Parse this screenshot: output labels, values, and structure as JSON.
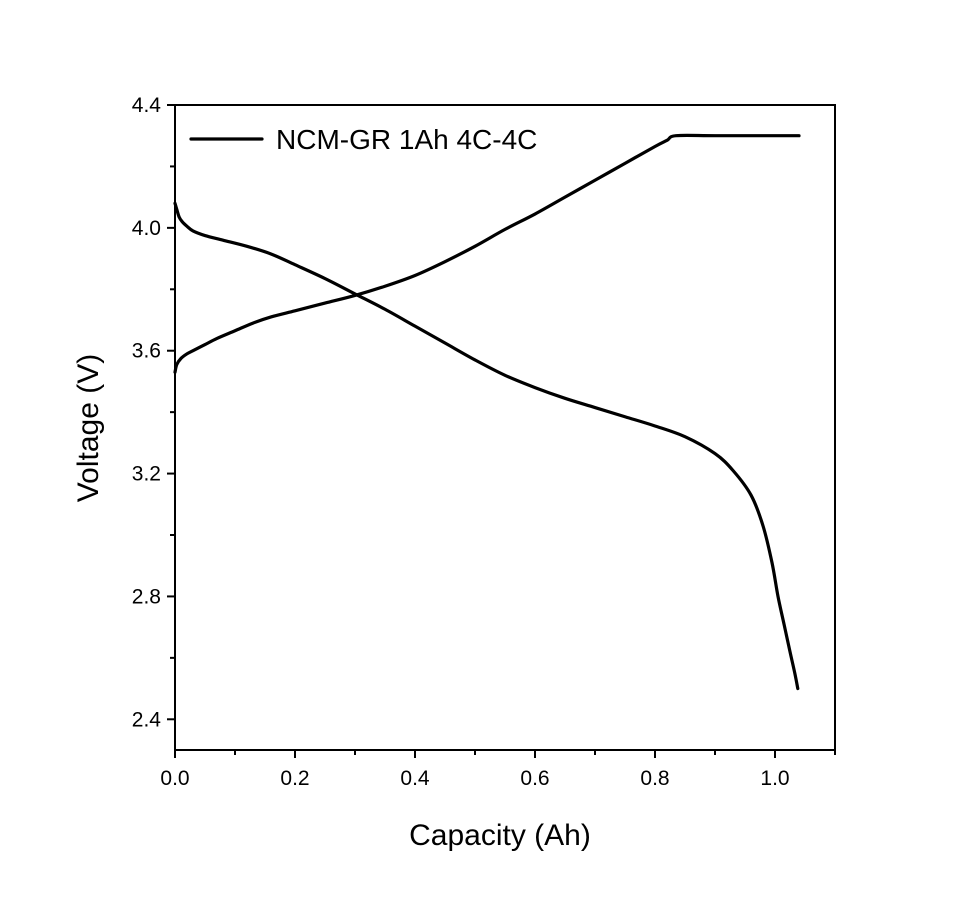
{
  "chart_data": {
    "type": "line",
    "title": "",
    "xlabel": "Capacity (Ah)",
    "ylabel": "Voltage (V)",
    "xlim": [
      0.0,
      1.1
    ],
    "ylim": [
      2.3,
      4.4
    ],
    "x_ticks": [
      "0.0",
      "0.2",
      "0.4",
      "0.6",
      "0.8",
      "1.0"
    ],
    "y_ticks": [
      "2.4",
      "2.8",
      "3.2",
      "3.6",
      "4.0",
      "4.4"
    ],
    "grid": false,
    "legend_position": "top-left",
    "legend_label": "NCM-GR 1Ah 4C-4C",
    "line_color": "#000000",
    "series": [
      {
        "name": "NCM-GR 1Ah 4C-4C",
        "curves": [
          {
            "x": [
              0.0,
              0.003,
              0.01,
              0.02,
              0.03,
              0.05,
              0.07,
              0.1,
              0.13,
              0.16,
              0.2,
              0.25,
              0.3,
              0.35,
              0.4,
              0.45,
              0.5,
              0.55,
              0.6,
              0.65,
              0.7,
              0.75,
              0.8,
              0.82,
              0.835,
              0.9,
              1.0,
              1.04
            ],
            "y": [
              3.53,
              3.555,
              3.575,
              3.59,
              3.6,
              3.62,
              3.64,
              3.665,
              3.69,
              3.71,
              3.73,
              3.755,
              3.78,
              3.81,
              3.845,
              3.89,
              3.94,
              3.995,
              4.045,
              4.1,
              4.155,
              4.21,
              4.265,
              4.285,
              4.3,
              4.3,
              4.3,
              4.3
            ]
          },
          {
            "x": [
              0.0,
              0.003,
              0.007,
              0.012,
              0.02,
              0.03,
              0.05,
              0.08,
              0.12,
              0.16,
              0.2,
              0.25,
              0.3,
              0.35,
              0.4,
              0.45,
              0.5,
              0.55,
              0.6,
              0.65,
              0.7,
              0.75,
              0.8,
              0.85,
              0.9,
              0.93,
              0.96,
              0.98,
              0.995,
              1.005,
              1.015,
              1.025,
              1.033,
              1.038
            ],
            "y": [
              4.08,
              4.06,
              4.035,
              4.02,
              4.005,
              3.99,
              3.975,
              3.96,
              3.94,
              3.915,
              3.88,
              3.835,
              3.785,
              3.735,
              3.68,
              3.625,
              3.57,
              3.52,
              3.48,
              3.445,
              3.415,
              3.385,
              3.355,
              3.32,
              3.265,
              3.21,
              3.13,
              3.03,
              2.91,
              2.8,
              2.71,
              2.62,
              2.55,
              2.5
            ]
          }
        ]
      }
    ]
  }
}
